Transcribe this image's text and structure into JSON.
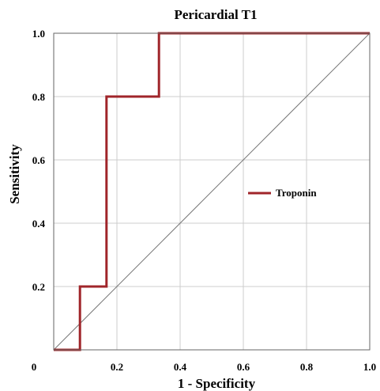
{
  "chart_data": {
    "type": "line",
    "title": "Pericardial T1",
    "xlabel": "1 - Specificity",
    "ylabel": "Sensitivity",
    "xlim": [
      0,
      1
    ],
    "ylim": [
      0,
      1
    ],
    "x_ticks": [
      0.2,
      0.4,
      0.6,
      0.8,
      1.0
    ],
    "y_ticks": [
      0.2,
      0.4,
      0.6,
      0.8,
      1.0
    ],
    "x_tick_labels": [
      "0.2",
      "0.4",
      "0.6",
      "0.8",
      "1.0"
    ],
    "y_tick_labels": [
      "0.2",
      "0.4",
      "0.6",
      "0.8",
      "1.0"
    ],
    "origin_label": "0",
    "grid": true,
    "legend_position": "right-middle",
    "series": [
      {
        "name": "Troponin",
        "color": "#a0252a",
        "x": [
          0,
          0.083,
          0.083,
          0.167,
          0.167,
          0.333,
          0.333,
          1.0
        ],
        "y": [
          0,
          0,
          0.2,
          0.2,
          0.8,
          0.8,
          1.0,
          1.0
        ]
      }
    ],
    "reference_line": {
      "x": [
        0,
        1
      ],
      "y": [
        0,
        1
      ],
      "color": "#777777"
    }
  }
}
